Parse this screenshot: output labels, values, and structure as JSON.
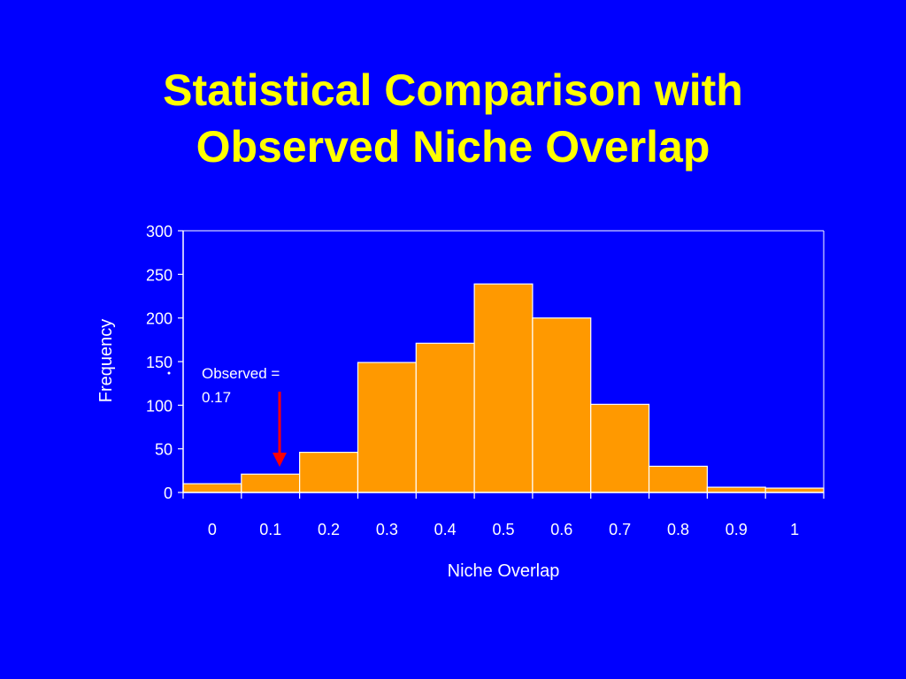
{
  "title_line1": "Statistical Comparison with",
  "title_line2": "Observed Niche Overlap",
  "colors": {
    "background": "#0000ff",
    "title": "#ffff00",
    "bar_fill": "#ff9900",
    "bar_stroke": "#ffffff",
    "axis": "#ffffff",
    "arrow": "#ff0000"
  },
  "chart_data": {
    "type": "bar",
    "categories": [
      "0",
      "0.1",
      "0.2",
      "0.3",
      "0.4",
      "0.5",
      "0.6",
      "0.7",
      "0.8",
      "0.9",
      "1"
    ],
    "values": [
      10,
      21,
      46,
      149,
      171,
      239,
      200,
      101,
      30,
      6,
      5
    ],
    "title": "",
    "xlabel": "Niche Overlap",
    "ylabel": "Frequency",
    "ylim": [
      0,
      300
    ],
    "yticks": [
      "0",
      "50",
      "100",
      "150",
      "200",
      "250",
      "300"
    ],
    "grid": false,
    "legend": "none",
    "annotation": {
      "line1": "Observed =",
      "line2": "0.17"
    }
  }
}
